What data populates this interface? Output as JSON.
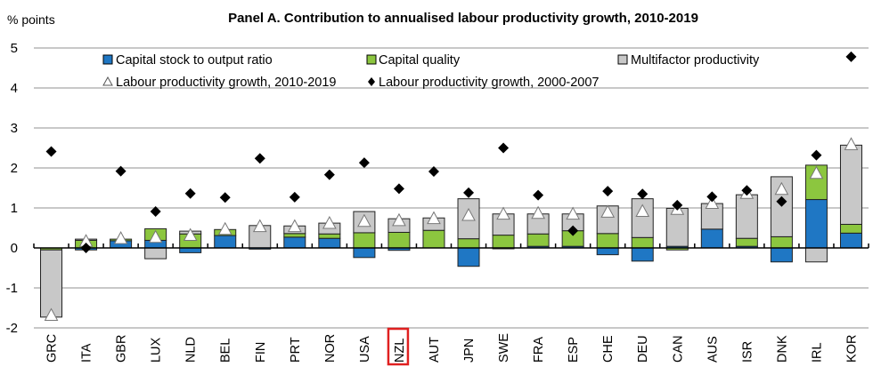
{
  "chart_data": {
    "type": "bar",
    "stacked": true,
    "title": "Panel A. Contribution to annualised labour productivity growth, 2010-2019",
    "ylabel": "% points",
    "xlabel": "",
    "ylim": [
      -2,
      5
    ],
    "yticks": [
      -2,
      -1,
      0,
      1,
      2,
      3,
      4,
      5
    ],
    "grid": true,
    "legend_position": "top",
    "highlighted_category": "NZL",
    "categories": [
      "GRC",
      "ITA",
      "GBR",
      "LUX",
      "NLD",
      "BEL",
      "FIN",
      "PRT",
      "NOR",
      "USA",
      "NZL",
      "AUT",
      "JPN",
      "SWE",
      "FRA",
      "ESP",
      "CHE",
      "DEU",
      "CAN",
      "AUS",
      "ISR",
      "DNK",
      "IRL",
      "KOR"
    ],
    "series": [
      {
        "name": "Capital stock to output ratio",
        "kind": "bar",
        "color": "#1f77c4",
        "values": [
          0.0,
          -0.05,
          0.18,
          0.19,
          -0.12,
          0.31,
          -0.03,
          0.27,
          0.24,
          -0.24,
          -0.06,
          0.0,
          -0.46,
          -0.02,
          0.04,
          0.04,
          -0.17,
          -0.33,
          0.04,
          0.47,
          0.04,
          -0.35,
          1.21,
          0.37
        ]
      },
      {
        "name": "Capital quality",
        "kind": "bar",
        "color": "#8cc63f",
        "values": [
          -0.05,
          0.19,
          0.04,
          0.29,
          0.35,
          0.15,
          0.0,
          0.09,
          0.11,
          0.38,
          0.39,
          0.44,
          0.23,
          0.32,
          0.31,
          0.39,
          0.36,
          0.26,
          -0.05,
          0.0,
          0.2,
          0.28,
          0.86,
          0.22
        ]
      },
      {
        "name": "Multifactor productivity",
        "kind": "bar",
        "color": "#c8c8c8",
        "values": [
          -1.68,
          0.03,
          0.0,
          -0.27,
          0.07,
          0.0,
          0.56,
          0.19,
          0.27,
          0.53,
          0.34,
          0.31,
          1.0,
          0.53,
          0.5,
          0.42,
          0.69,
          0.97,
          0.95,
          0.64,
          1.09,
          1.5,
          -0.35,
          1.98
        ]
      },
      {
        "name": "Labour productivity growth, 2010-2019",
        "kind": "marker",
        "marker": "triangle",
        "values": [
          -1.7,
          0.15,
          0.22,
          0.25,
          0.3,
          0.45,
          0.52,
          0.52,
          0.6,
          0.65,
          0.67,
          0.72,
          0.8,
          0.83,
          0.85,
          0.83,
          0.88,
          0.9,
          0.95,
          1.1,
          1.35,
          1.45,
          1.85,
          2.57
        ]
      },
      {
        "name": "Labour productivity growth, 2000-2007",
        "kind": "marker",
        "marker": "diamond",
        "values": [
          2.41,
          0.0,
          1.92,
          0.91,
          1.36,
          1.26,
          2.24,
          1.27,
          1.83,
          2.13,
          1.48,
          1.91,
          1.38,
          2.5,
          1.32,
          0.43,
          1.42,
          1.35,
          1.07,
          1.28,
          1.44,
          1.16,
          2.32,
          4.78
        ]
      }
    ]
  }
}
